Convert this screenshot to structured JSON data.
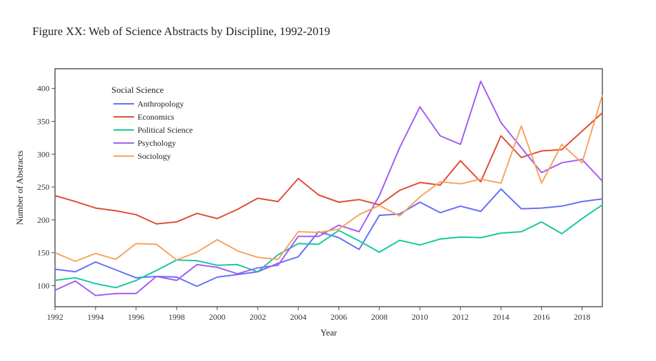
{
  "chart_data": {
    "type": "line",
    "title": "Figure XX: Web of Science Abstracts by Discipline, 1992-2019",
    "xlabel": "Year",
    "ylabel": "Number of Abstracts",
    "legend_title": "Social Science",
    "legend_placement": "top-left",
    "grid": false,
    "xlim": [
      1992,
      2019
    ],
    "ylim": [
      68,
      430
    ],
    "x_ticks": [
      "1992",
      "1994",
      "1996",
      "1998",
      "2000",
      "2002",
      "2004",
      "2006",
      "2008",
      "2010",
      "2012",
      "2014",
      "2016",
      "2018"
    ],
    "y_ticks": [
      "100",
      "150",
      "200",
      "250",
      "300",
      "350",
      "400"
    ],
    "x": [
      1992,
      1993,
      1994,
      1995,
      1996,
      1997,
      1998,
      1999,
      2000,
      2001,
      2002,
      2003,
      2004,
      2005,
      2006,
      2007,
      2008,
      2009,
      2010,
      2011,
      2012,
      2013,
      2014,
      2015,
      2016,
      2017,
      2018,
      2019
    ],
    "series": [
      {
        "name": "Anthropology",
        "color": "#636efa",
        "values": [
          125,
          121,
          136,
          124,
          112,
          114,
          113,
          99,
          113,
          117,
          121,
          134,
          144,
          182,
          173,
          155,
          207,
          209,
          227,
          211,
          221,
          213,
          247,
          217,
          218,
          221,
          228,
          232
        ]
      },
      {
        "name": "Economics",
        "color": "#e04b35",
        "values": [
          237,
          228,
          218,
          214,
          208,
          194,
          197,
          210,
          202,
          216,
          233,
          228,
          263,
          238,
          227,
          231,
          223,
          245,
          257,
          253,
          290,
          258,
          328,
          295,
          305,
          307,
          335,
          363
        ]
      },
      {
        "name": "Political Science",
        "color": "#16c79e",
        "values": [
          108,
          112,
          103,
          97,
          108,
          123,
          139,
          138,
          131,
          132,
          121,
          147,
          164,
          163,
          184,
          168,
          151,
          169,
          162,
          171,
          174,
          173,
          180,
          182,
          197,
          179,
          202,
          223
        ]
      },
      {
        "name": "Psychology",
        "color": "#a25cf5",
        "values": [
          93,
          107,
          85,
          88,
          88,
          114,
          108,
          132,
          128,
          118,
          127,
          131,
          175,
          175,
          192,
          182,
          237,
          310,
          372,
          328,
          315,
          411,
          348,
          310,
          272,
          287,
          292,
          259
        ]
      },
      {
        "name": "Sociology",
        "color": "#f8a25e",
        "values": [
          150,
          137,
          149,
          140,
          164,
          163,
          139,
          151,
          170,
          153,
          143,
          140,
          182,
          181,
          186,
          208,
          222,
          206,
          235,
          258,
          255,
          262,
          256,
          343,
          256,
          315,
          287,
          390
        ]
      }
    ]
  }
}
